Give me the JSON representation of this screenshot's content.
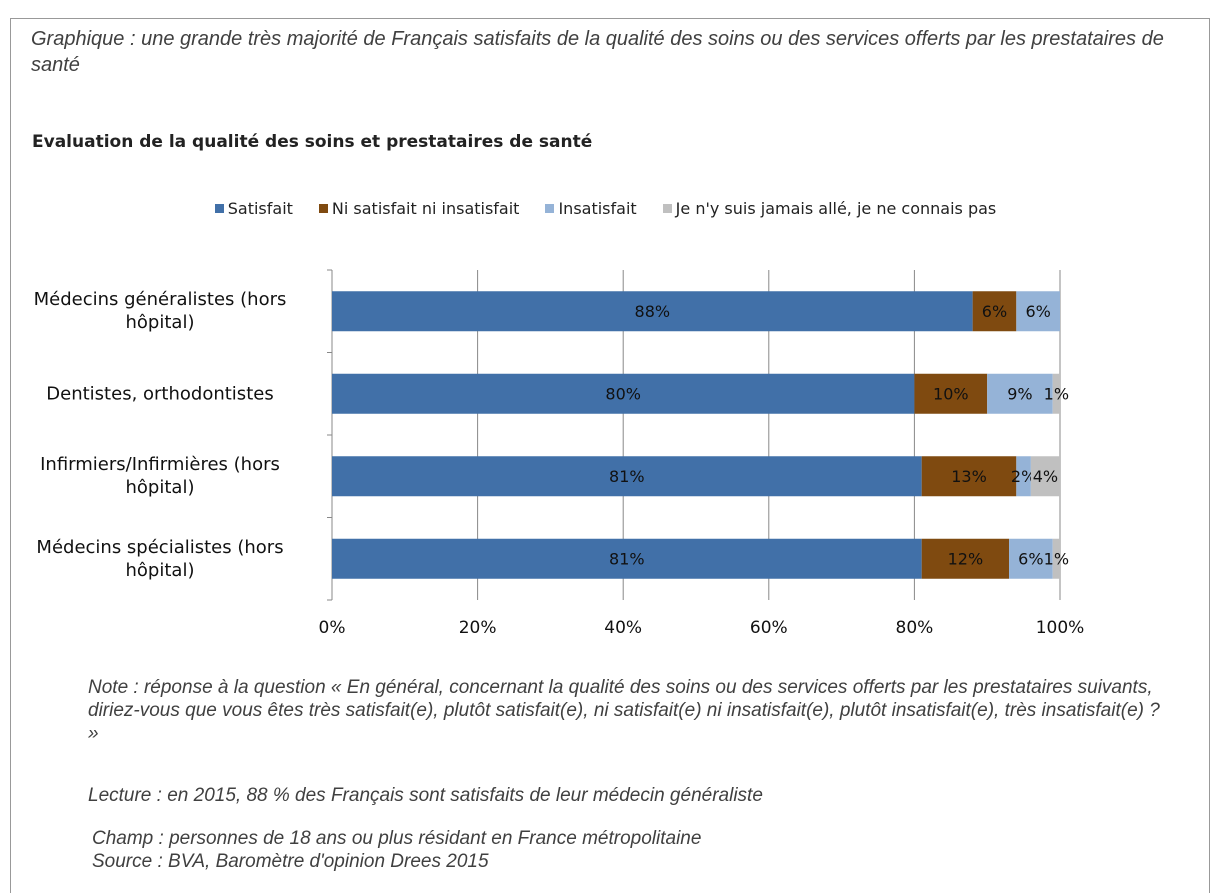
{
  "header": {
    "title": "Graphique : une grande très majorité de Français satisfaits de la qualité des soins ou des services offerts par les prestataires de santé"
  },
  "chart_data": {
    "type": "stacked-barh",
    "title": "Evaluation de la qualité des soins et prestataires de santé",
    "categories": [
      "Médecins généralistes (hors hôpital)",
      "Dentistes, orthodontistes",
      "Infirmiers/Infirmières (hors hôpital)",
      "Médecins spécialistes (hors hôpital)"
    ],
    "series": [
      {
        "name": "Satisfait",
        "color": "#4170a8",
        "values": [
          88,
          80,
          81,
          81
        ],
        "value_labels": [
          "88%",
          "80%",
          "81%",
          "81%"
        ]
      },
      {
        "name": "Ni satisfait ni insatisfait",
        "color": "#7f4a10",
        "values": [
          6,
          10,
          13,
          12
        ],
        "value_labels": [
          "6%",
          "10%",
          "13%",
          "12%"
        ]
      },
      {
        "name": "Insatisfait",
        "color": "#95b3d7",
        "values": [
          6,
          9,
          2,
          6
        ],
        "value_labels": [
          "6%",
          "9%",
          "2%",
          "6%"
        ]
      },
      {
        "name": "Je n'y suis jamais allé, je ne connais pas",
        "color": "#c0c0c0",
        "values": [
          null,
          1,
          4,
          1
        ],
        "value_labels": [
          null,
          "1%",
          "4%",
          "1%"
        ]
      }
    ],
    "xlim": [
      0,
      100
    ],
    "xticks": [
      {
        "value": 0,
        "label": "0%"
      },
      {
        "value": 20,
        "label": "20%"
      },
      {
        "value": 40,
        "label": "40%"
      },
      {
        "value": 60,
        "label": "60%"
      },
      {
        "value": 80,
        "label": "80%"
      },
      {
        "value": 100,
        "label": "100%"
      }
    ],
    "grid": true,
    "legend": "top"
  },
  "notes": [
    "Note : réponse à la question « En général, concernant la qualité des soins ou des services offerts par les prestataires suivants, diriez-vous que vous êtes très satisfait(e), plutôt satisfait(e), ni satisfait(e) ni insatisfait(e), plutôt insatisfait(e), très insatisfait(e) ? »",
    "Lecture : en 2015, 88 % des Français sont satisfaits de leur médecin généraliste",
    "Champ : personnes de 18 ans ou plus résidant en France métropolitaine",
    "Source : BVA, Baromètre d'opinion Drees 2015"
  ]
}
